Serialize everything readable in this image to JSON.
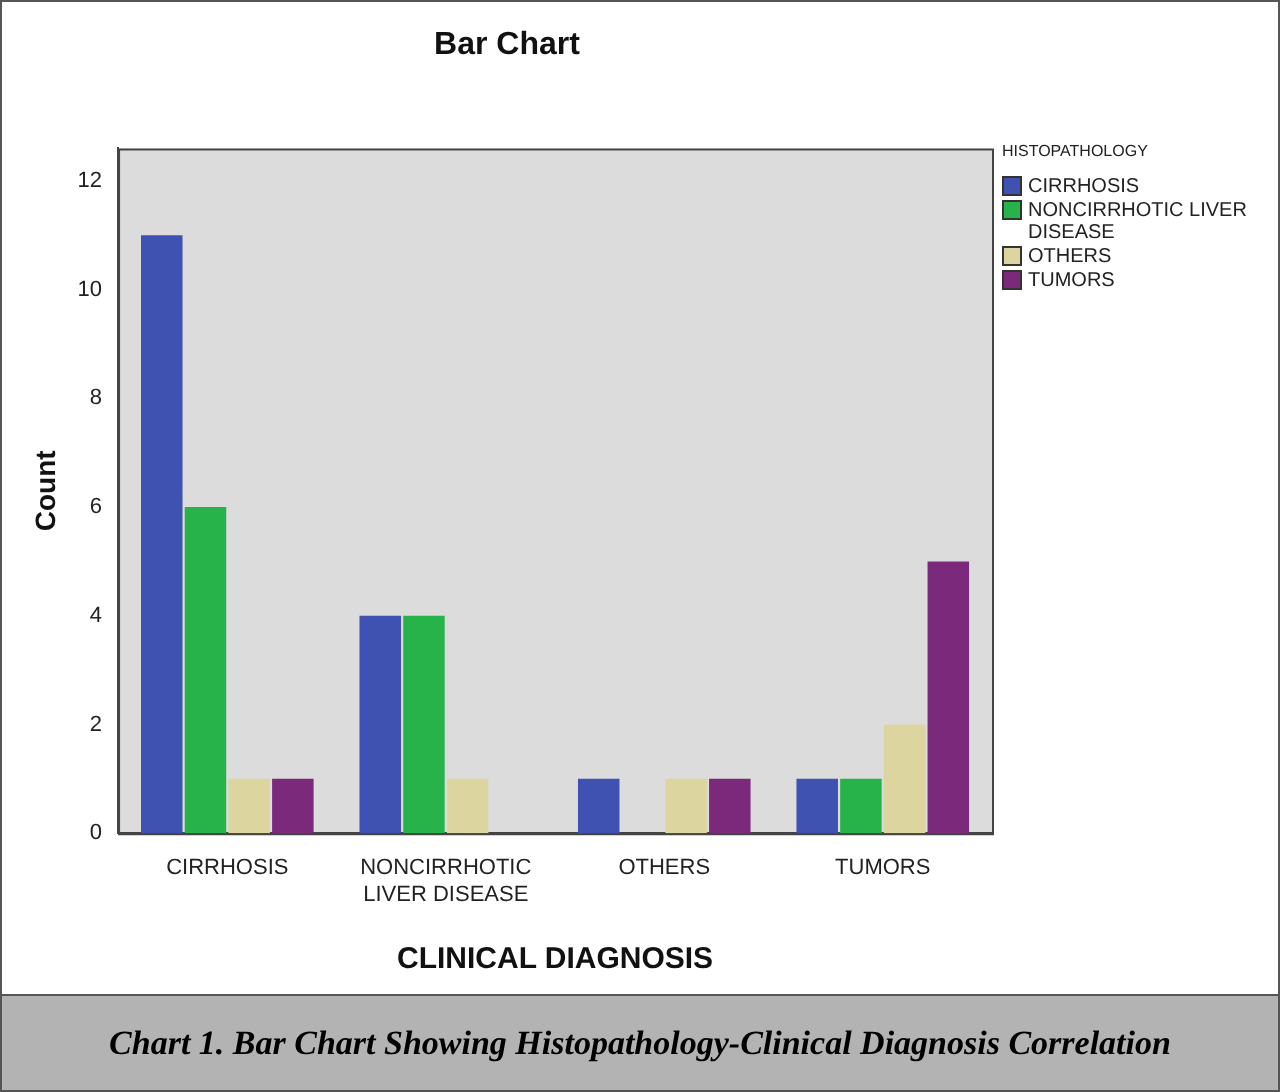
{
  "chart_data": {
    "type": "bar",
    "title": "Bar Chart",
    "xlabel": "CLINICAL DIAGNOSIS",
    "ylabel": "Count",
    "legend_title": "HISTOPATHOLOGY",
    "categories": [
      "CIRRHOSIS",
      "NONCIRRHOTIC LIVER DISEASE",
      "OTHERS",
      "TUMORS"
    ],
    "series": [
      {
        "name": "CIRRHOSIS",
        "color": "#3f51b1",
        "values": [
          11,
          4,
          1,
          1
        ]
      },
      {
        "name": "NONCIRRHOTIC LIVER DISEASE",
        "color": "#27b34a",
        "values": [
          6,
          4,
          0,
          1
        ]
      },
      {
        "name": "OTHERS",
        "color": "#dcd59f",
        "values": [
          1,
          1,
          1,
          2
        ]
      },
      {
        "name": "TUMORS",
        "color": "#7b2a7b",
        "values": [
          1,
          0,
          1,
          5
        ]
      }
    ],
    "ylim": [
      0,
      12.6
    ],
    "yticks": [
      0,
      2,
      4,
      6,
      8,
      10,
      12
    ],
    "grid": false,
    "legend": "right",
    "annotations": [
      "Chart 1. Bar Chart Showing Histopathology-Clinical Diagnosis Correlation"
    ]
  }
}
